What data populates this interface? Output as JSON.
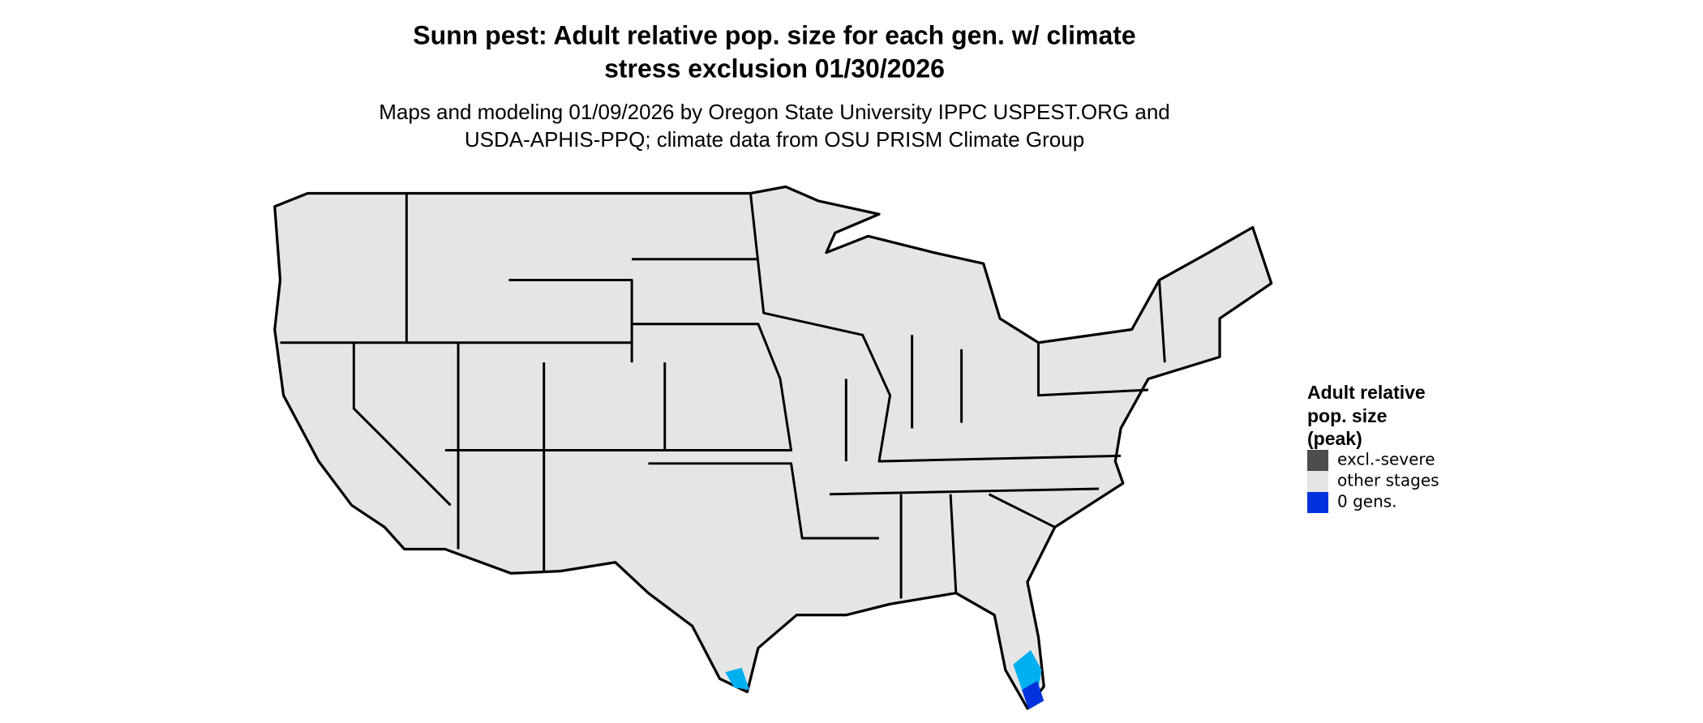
{
  "title": [
    "Sunn pest: Adult relative pop. size for each gen. w/ climate",
    "stress exclusion 01/30/2026"
  ],
  "subtitle": [
    "Maps and modeling 01/09/2026 by Oregon State University IPPC USPEST.ORG and",
    "USDA-APHIS-PPQ; climate data from OSU PRISM Climate Group"
  ],
  "legend": {
    "title": [
      "Adult relative",
      "pop. size",
      "(peak)"
    ],
    "items": [
      {
        "label": "excl.-severe",
        "color": "#4d4d4d"
      },
      {
        "label": "other stages",
        "color": "#e5e5e5"
      },
      {
        "label": "0 gens.",
        "color": "#0033dd"
      }
    ]
  }
}
